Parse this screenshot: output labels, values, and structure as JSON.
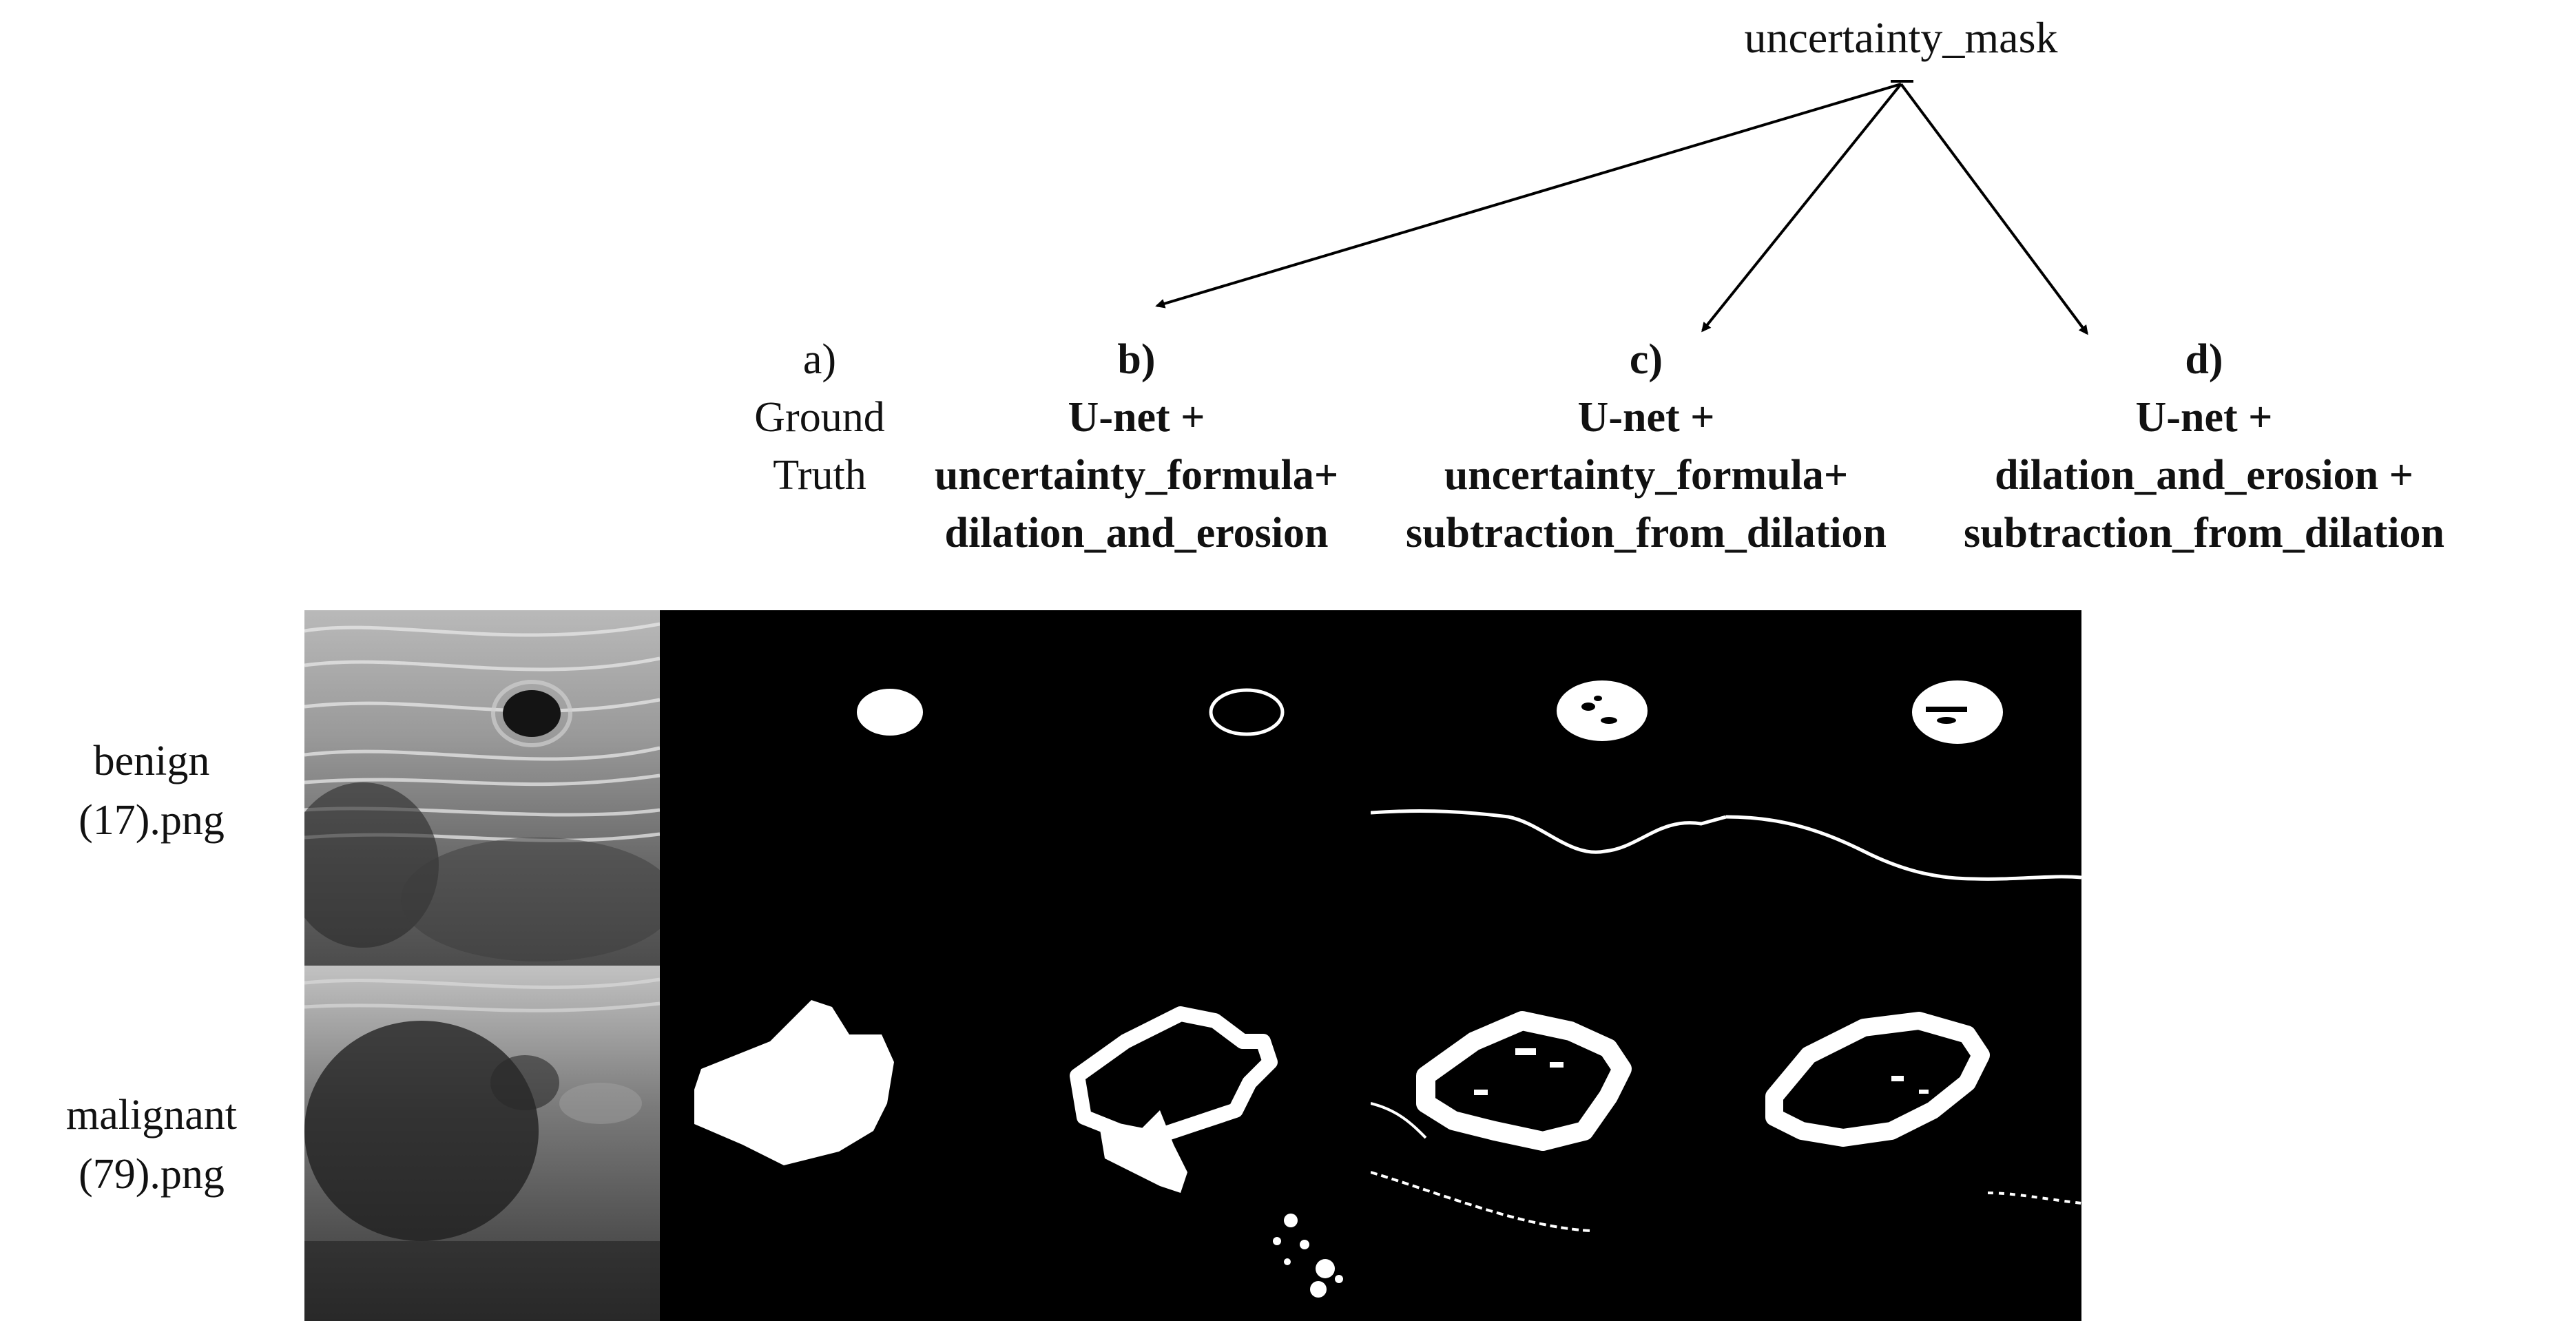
{
  "top_label": "uncertainty_mask",
  "columns": [
    {
      "letter": "a)",
      "lines": [
        "Ground",
        "Truth"
      ]
    },
    {
      "letter": "b)",
      "lines": [
        "U-net +",
        "uncertainty_formula+",
        "dilation_and_erosion"
      ]
    },
    {
      "letter": "c)",
      "lines": [
        "U-net +",
        "uncertainty_formula+",
        "subtraction_from_dilation"
      ]
    },
    {
      "letter": "d)",
      "lines": [
        "U-net +",
        "dilation_and_erosion +",
        "subtraction_from_dilation"
      ]
    }
  ],
  "rows": [
    {
      "lines": [
        "benign",
        "(17).png"
      ]
    },
    {
      "lines": [
        "malignant",
        "(79).png"
      ]
    }
  ],
  "colors": {
    "background": "#ffffff",
    "mask_bg": "#000000",
    "mask_fg": "#ffffff",
    "arrow": "#000000"
  }
}
